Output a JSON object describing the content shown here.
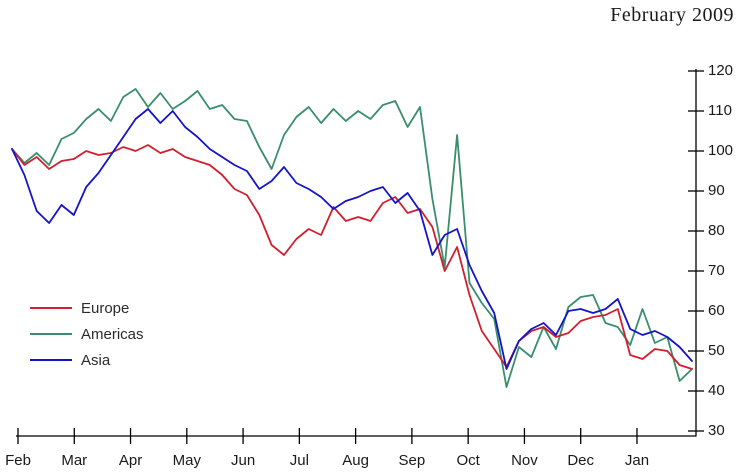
{
  "title": "February 2009",
  "chart_data": {
    "type": "line",
    "title": "February 2009",
    "x_tick_labels": [
      "Feb",
      "Mar",
      "Apr",
      "May",
      "Jun",
      "Jul",
      "Aug",
      "Sep",
      "Oct",
      "Nov",
      "Dec",
      "Jan"
    ],
    "y_ticks": [
      120,
      110,
      100,
      90,
      80,
      70,
      60,
      50,
      40,
      30
    ],
    "ylim": [
      30,
      120
    ],
    "y_axis_side": "right",
    "grid": false,
    "legend_position": "left-middle",
    "axis_color": "#000000",
    "text_color": "#1a1a1a",
    "series": [
      {
        "name": "Europe",
        "color": "#d01f2e",
        "values": [
          100.5,
          96.5,
          98.5,
          95.5,
          97.5,
          98,
          100,
          99,
          99.5,
          101,
          100,
          101.5,
          99.5,
          100.5,
          98.5,
          97.5,
          96.5,
          94,
          90.5,
          89,
          84,
          76.5,
          74,
          78,
          80.5,
          79,
          86,
          82.5,
          83.5,
          82.5,
          87,
          88.5,
          84.5,
          85.5,
          81,
          70,
          76,
          64,
          55,
          50.5,
          46,
          52.5,
          55,
          56,
          53.5,
          54.5,
          57.5,
          58.5,
          59,
          60.5,
          49,
          48,
          50.5,
          50,
          46.5,
          45.5
        ]
      },
      {
        "name": "Americas",
        "color": "#398e6d",
        "values": [
          100.5,
          97,
          99.5,
          96.5,
          103,
          104.5,
          108,
          110.5,
          107.5,
          113.5,
          115.5,
          111,
          114.5,
          110.5,
          112.5,
          115,
          110.5,
          111.5,
          108,
          107.5,
          101,
          95.5,
          104,
          108.5,
          111,
          107,
          110.5,
          107.5,
          110,
          108,
          111.5,
          112.5,
          106,
          111,
          88,
          71,
          104,
          67,
          62,
          58,
          41,
          51,
          48.5,
          56,
          50.5,
          61,
          63.5,
          64,
          57,
          56,
          51.5,
          60.5,
          52,
          53.5,
          42.5,
          45.5
        ]
      },
      {
        "name": "Asia",
        "color": "#1414c8",
        "values": [
          100.5,
          94,
          85,
          82,
          86.5,
          84,
          91,
          94.5,
          99,
          103.5,
          108,
          110.5,
          107,
          110,
          106,
          103.5,
          100.5,
          98.5,
          96.5,
          95,
          90.5,
          92.5,
          96,
          92,
          90.5,
          88.5,
          85.5,
          87.5,
          88.5,
          90,
          91,
          87,
          89.5,
          85,
          74,
          79,
          80.5,
          71.5,
          65,
          59.5,
          45.5,
          52.5,
          55.5,
          57,
          54,
          60,
          60.5,
          59.5,
          60.5,
          63,
          55.5,
          54,
          55,
          53.5,
          51,
          47.5
        ]
      }
    ]
  }
}
